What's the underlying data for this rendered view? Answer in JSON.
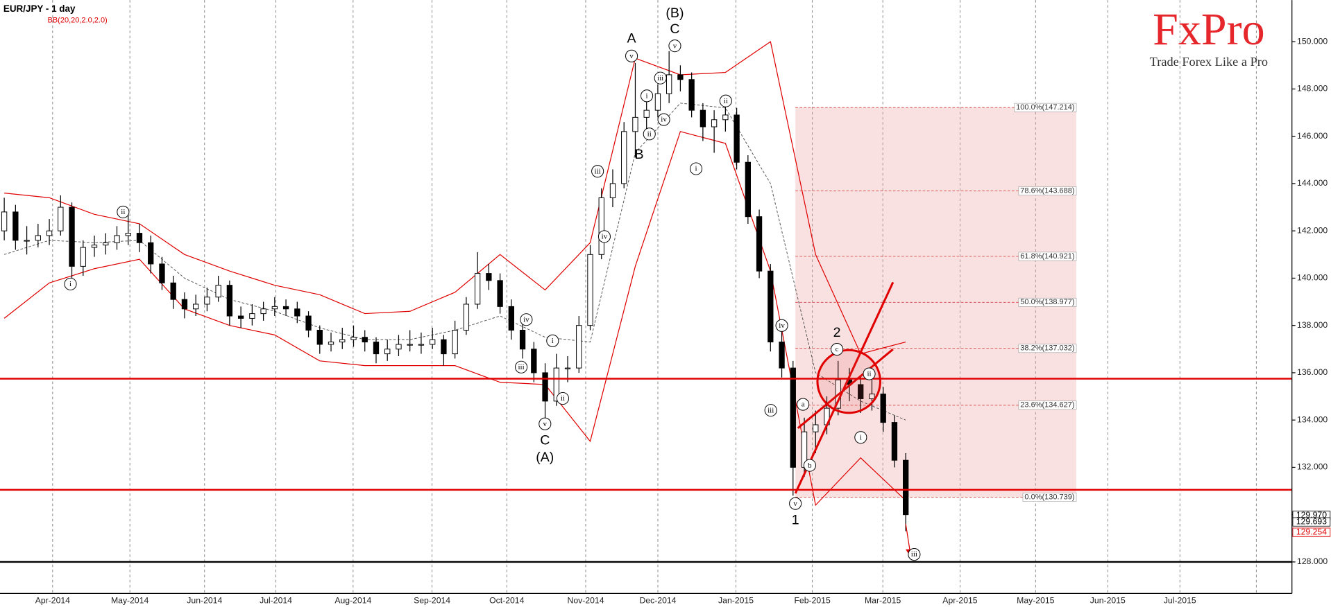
{
  "chart_data": {
    "type": "candlestick",
    "title": "EUR/JPY - 1 day",
    "indicator": "BB(20,20,2.0,2.0)",
    "logo": {
      "name": "FxPro",
      "tagline": "Trade Forex Like a Pro"
    },
    "categories": [
      "Apr-2014",
      "May-2014",
      "Jun-2014",
      "Jul-2014",
      "Aug-2014",
      "Sep-2014",
      "Oct-2014",
      "Nov-2014",
      "Dec-2014",
      "Jan-2015",
      "Feb-2015",
      "Mar-2015",
      "Apr-2015",
      "May-2015",
      "Jun-2015",
      "Jul-2015"
    ],
    "open": [
      142.0,
      142.8,
      141.6,
      141.6,
      141.8,
      142.0,
      143.0,
      140.5,
      141.3,
      141.4,
      141.5,
      141.8,
      141.9,
      141.5,
      140.6,
      139.8,
      139.1,
      138.7,
      138.9,
      139.2,
      139.7,
      138.4,
      138.3,
      138.5,
      138.7,
      138.8,
      138.7,
      138.4,
      137.8,
      137.2,
      137.3,
      137.4,
      137.5,
      137.3,
      136.8,
      137.0,
      137.2,
      137.2,
      137.2,
      137.4,
      136.8,
      137.8,
      138.9,
      140.2,
      139.9,
      138.8,
      137.8,
      137.0,
      136.0,
      134.8,
      136.2,
      136.2,
      138.0,
      141.0,
      143.4,
      144.0,
      146.2,
      146.8,
      147.1,
      147.8,
      148.6,
      148.4,
      147.1,
      146.4,
      146.7,
      146.9,
      144.9,
      142.6,
      140.3,
      137.3,
      136.2,
      132.0,
      133.5,
      133.8,
      134.5,
      135.7,
      135.5,
      134.9,
      135.1,
      133.9,
      132.3
    ],
    "high": [
      143.4,
      143.1,
      142.2,
      142.3,
      142.5,
      143.5,
      143.2,
      141.6,
      141.8,
      141.9,
      142.2,
      142.7,
      142.3,
      141.8,
      140.9,
      140.1,
      139.4,
      139.3,
      139.6,
      140.1,
      139.9,
      138.8,
      138.9,
      139.0,
      139.2,
      139.1,
      139.0,
      138.6,
      138.0,
      137.7,
      137.9,
      138.0,
      137.8,
      137.5,
      137.4,
      137.6,
      137.8,
      137.7,
      137.9,
      137.6,
      138.2,
      139.2,
      141.1,
      140.6,
      140.2,
      139.1,
      138.2,
      137.3,
      136.4,
      136.8,
      136.7,
      138.4,
      141.4,
      143.8,
      144.6,
      146.6,
      149.1,
      147.6,
      148.2,
      149.6,
      149.0,
      148.7,
      147.4,
      147.1,
      147.3,
      147.2,
      145.2,
      142.9,
      140.6,
      138.0,
      136.5,
      134.1,
      134.4,
      135.0,
      136.5,
      136.2,
      135.9,
      135.7,
      135.4,
      134.2,
      132.6
    ],
    "low": [
      141.6,
      141.2,
      141.0,
      141.3,
      141.4,
      141.8,
      140.0,
      140.1,
      140.9,
      141.0,
      141.2,
      141.4,
      141.1,
      140.2,
      139.5,
      138.7,
      138.3,
      138.4,
      138.6,
      139.0,
      138.0,
      137.9,
      138.0,
      138.2,
      138.4,
      138.4,
      138.1,
      137.5,
      136.8,
      136.9,
      137.0,
      137.1,
      136.9,
      136.4,
      136.5,
      136.7,
      136.9,
      136.8,
      137.0,
      136.3,
      136.6,
      137.6,
      138.7,
      139.5,
      138.5,
      137.4,
      136.6,
      135.6,
      134.0,
      134.6,
      135.6,
      136.0,
      137.8,
      140.8,
      143.0,
      143.8,
      145.1,
      146.2,
      146.8,
      147.4,
      147.9,
      146.8,
      145.8,
      145.3,
      146.2,
      144.6,
      142.3,
      140.0,
      136.9,
      135.8,
      130.8,
      131.6,
      132.6,
      133.4,
      134.2,
      134.8,
      134.3,
      134.4,
      133.5,
      132.0,
      129.3
    ],
    "close": [
      142.8,
      141.6,
      141.6,
      141.8,
      142.0,
      143.0,
      140.5,
      141.3,
      141.4,
      141.5,
      141.8,
      141.9,
      141.5,
      140.6,
      139.8,
      139.1,
      138.7,
      138.9,
      139.2,
      139.7,
      138.4,
      138.3,
      138.5,
      138.7,
      138.8,
      138.7,
      138.4,
      137.8,
      137.2,
      137.3,
      137.4,
      137.5,
      137.3,
      136.8,
      137.0,
      137.2,
      137.2,
      137.2,
      137.4,
      136.8,
      137.8,
      138.9,
      140.2,
      139.9,
      138.8,
      137.8,
      137.0,
      136.0,
      134.8,
      136.2,
      136.2,
      138.0,
      141.0,
      143.4,
      144.0,
      146.2,
      146.8,
      147.1,
      147.8,
      148.6,
      148.4,
      147.1,
      146.4,
      146.7,
      146.9,
      144.9,
      142.6,
      140.3,
      137.3,
      136.2,
      132.0,
      133.5,
      133.8,
      134.5,
      135.7,
      135.5,
      134.9,
      135.1,
      133.9,
      132.3,
      130.0
    ],
    "bollinger": {
      "color": "#e00000",
      "upper": [
        143.6,
        143.4,
        142.7,
        142.3,
        141.0,
        140.3,
        139.7,
        139.3,
        138.5,
        138.6,
        139.4,
        141.0,
        139.5,
        141.5,
        149.3,
        148.6,
        148.7,
        150.0,
        141.0,
        136.8,
        137.3
      ],
      "middle": [
        141.0,
        141.6,
        141.5,
        141.6,
        140.0,
        139.1,
        138.6,
        137.9,
        137.4,
        137.4,
        137.8,
        138.4,
        137.5,
        137.3,
        145.3,
        147.4,
        147.2,
        144.0,
        136.0,
        134.8,
        134.0
      ],
      "lower": [
        138.3,
        139.8,
        140.4,
        140.8,
        138.7,
        138.0,
        137.6,
        136.5,
        136.3,
        136.3,
        136.3,
        135.6,
        135.5,
        133.1,
        140.5,
        146.2,
        145.7,
        140.3,
        130.4,
        132.4,
        130.6
      ]
    },
    "ylim": [
      126.67,
      151.76
    ],
    "yticks": [
      {
        "value": 128,
        "label": "128.000"
      },
      {
        "value": 130,
        "label": "130.000"
      },
      {
        "value": 132,
        "label": "132.000"
      },
      {
        "value": 134,
        "label": "134.000"
      },
      {
        "value": 136,
        "label": "136.000"
      },
      {
        "value": 138,
        "label": "138.000"
      },
      {
        "value": 140,
        "label": "140.000"
      },
      {
        "value": 142,
        "label": "142.000"
      },
      {
        "value": 144,
        "label": "144.000"
      },
      {
        "value": 146,
        "label": "146.000"
      },
      {
        "value": 148,
        "label": "148.000"
      },
      {
        "value": 150,
        "label": "150.000"
      }
    ],
    "levels": [
      {
        "value": 135.75,
        "color": "#e00000"
      },
      {
        "value": 131.05,
        "color": "#e00000"
      },
      {
        "value": 128.0,
        "color": "#000000"
      }
    ],
    "fibonacci": [
      {
        "value": 147.214,
        "label": "100.0%(147.214)"
      },
      {
        "value": 143.688,
        "label": "78.6%(143.688)"
      },
      {
        "value": 140.921,
        "label": "61.8%(140.921)"
      },
      {
        "value": 138.977,
        "label": "50.0%(138.977)"
      },
      {
        "value": 137.032,
        "label": "38.2%(137.032)"
      },
      {
        "value": 134.627,
        "label": "23.6%(134.627)"
      },
      {
        "value": 130.739,
        "label": "0.0%(130.739)"
      }
    ],
    "price_tags": [
      {
        "value": 129.97,
        "label": "129.970",
        "color": "#000000"
      },
      {
        "value": 129.693,
        "label": "129.693",
        "color": "#000000"
      },
      {
        "value": 129.254,
        "label": "129.254",
        "color": "#e00000"
      }
    ],
    "wave_labels": [
      "i",
      "ii",
      "iv",
      "i",
      "iii",
      "ii",
      "v",
      "iii",
      "iv",
      "v",
      "i",
      "ii",
      "iii",
      "iv",
      "v",
      "ii",
      "i",
      "iv",
      "iii",
      "v",
      "a",
      "b",
      "c",
      "ii",
      "i",
      "iii"
    ],
    "wave_letters": [
      "C",
      "(A)",
      "A",
      "B",
      "C",
      "(B)",
      "1",
      "2"
    ]
  }
}
